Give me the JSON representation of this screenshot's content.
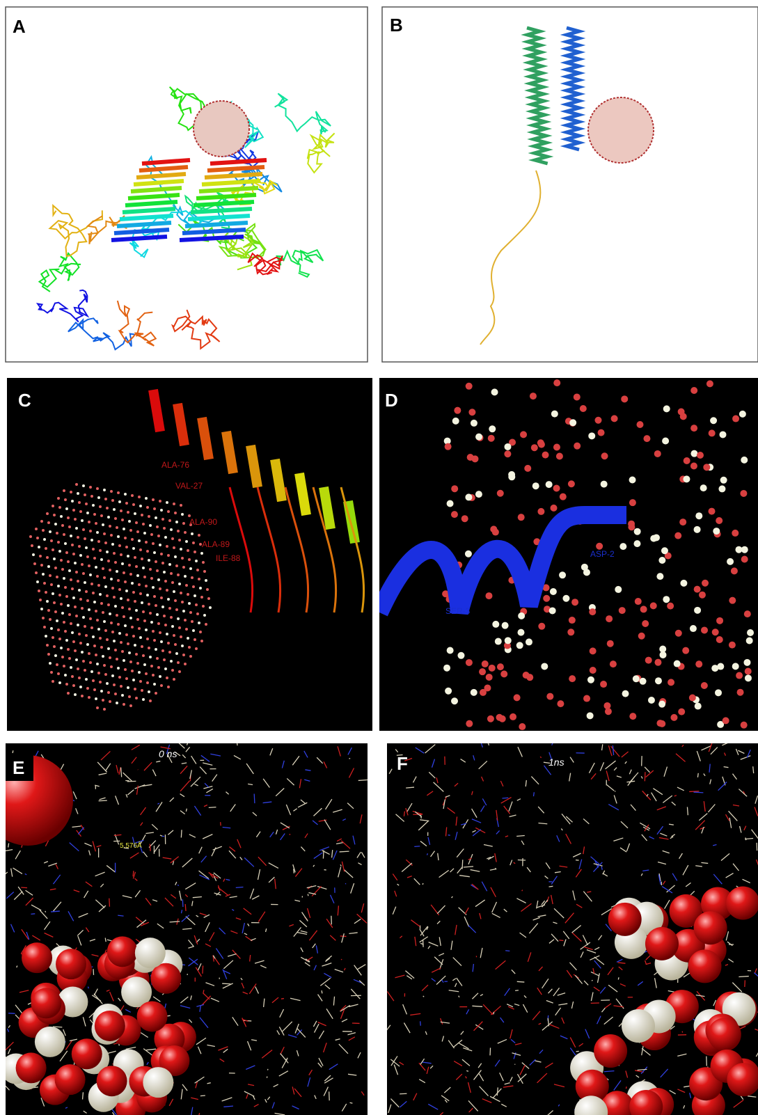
{
  "panels": [
    {
      "label": "A"
    },
    {
      "label": "B"
    },
    {
      "label": "C",
      "annotations": [
        "ALA-76",
        "VAL-27",
        "ALA-90",
        "ALA-89",
        "ILE-88"
      ]
    },
    {
      "label": "D",
      "annotations": [
        "ASP-2",
        "SER-3"
      ]
    },
    {
      "label": "E",
      "time": "0 ns",
      "annotations": [
        "5.576Å"
      ]
    },
    {
      "label": "F",
      "time": "1ns"
    }
  ]
}
